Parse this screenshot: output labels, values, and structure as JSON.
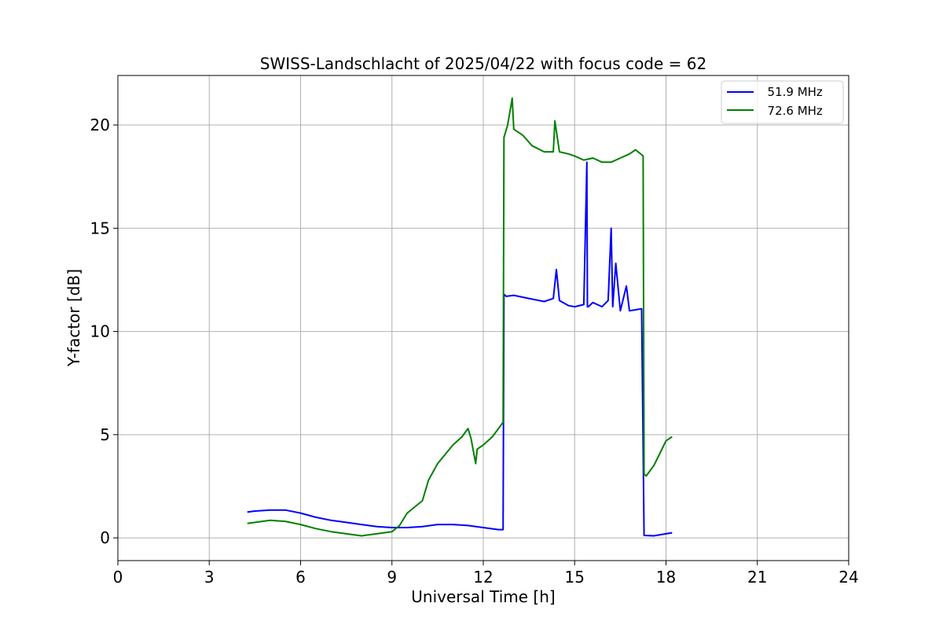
{
  "chart_data": {
    "type": "line",
    "title": "SWISS-Landschlacht of 2025/04/22 with focus code = 62",
    "xlabel": "Universal Time [h]",
    "ylabel": "Y-factor [dB]",
    "xlim": [
      0,
      24
    ],
    "ylim": [
      -1.1,
      22.4
    ],
    "xticks": [
      "0",
      "3",
      "6",
      "9",
      "12",
      "15",
      "18",
      "21",
      "24"
    ],
    "yticks": [
      "0",
      "5",
      "10",
      "15",
      "20"
    ],
    "grid": true,
    "legend_position": "top-right",
    "series": [
      {
        "name": "  51.9 MHz",
        "color": "#0000ff",
        "x": [
          4.25,
          4.5,
          5.0,
          5.5,
          6.0,
          6.5,
          7.0,
          7.5,
          8.0,
          8.5,
          9.0,
          9.5,
          10.0,
          10.5,
          11.0,
          11.5,
          12.0,
          12.5,
          12.65,
          12.68,
          12.75,
          13.0,
          13.5,
          14.0,
          14.3,
          14.4,
          14.5,
          14.8,
          15.0,
          15.3,
          15.4,
          15.42,
          15.45,
          15.6,
          15.9,
          16.1,
          16.2,
          16.25,
          16.35,
          16.5,
          16.7,
          16.8,
          17.0,
          17.2,
          17.28,
          17.3,
          17.6,
          18.0,
          18.2
        ],
        "y": [
          1.25,
          1.3,
          1.35,
          1.35,
          1.2,
          1.0,
          0.85,
          0.75,
          0.65,
          0.55,
          0.5,
          0.5,
          0.55,
          0.65,
          0.65,
          0.6,
          0.5,
          0.4,
          0.4,
          11.8,
          11.7,
          11.75,
          11.6,
          11.45,
          11.6,
          13.0,
          11.5,
          11.25,
          11.2,
          11.3,
          18.2,
          11.2,
          11.2,
          11.4,
          11.2,
          11.5,
          15.0,
          11.2,
          13.3,
          11.0,
          12.2,
          11.0,
          11.05,
          11.1,
          0.12,
          0.12,
          0.1,
          0.2,
          0.25
        ]
      },
      {
        "name": "  72.6 MHz",
        "color": "#008000",
        "x": [
          4.25,
          4.5,
          5.0,
          5.5,
          6.0,
          6.5,
          7.0,
          7.5,
          8.0,
          8.5,
          9.0,
          9.25,
          9.5,
          10.0,
          10.2,
          10.5,
          11.0,
          11.3,
          11.5,
          11.6,
          11.75,
          11.8,
          12.0,
          12.3,
          12.65,
          12.68,
          12.8,
          12.95,
          13.0,
          13.3,
          13.6,
          14.0,
          14.3,
          14.35,
          14.5,
          14.8,
          15.0,
          15.3,
          15.6,
          15.9,
          16.2,
          16.5,
          16.8,
          17.0,
          17.25,
          17.28,
          17.35,
          17.6,
          17.8,
          18.0,
          18.2
        ],
        "y": [
          0.7,
          0.75,
          0.85,
          0.8,
          0.65,
          0.45,
          0.3,
          0.2,
          0.1,
          0.2,
          0.3,
          0.6,
          1.2,
          1.8,
          2.8,
          3.6,
          4.5,
          4.9,
          5.3,
          4.8,
          3.6,
          4.3,
          4.5,
          4.9,
          5.6,
          19.4,
          20.0,
          21.3,
          19.8,
          19.5,
          19.0,
          18.7,
          18.7,
          20.2,
          18.7,
          18.6,
          18.5,
          18.3,
          18.4,
          18.2,
          18.2,
          18.4,
          18.6,
          18.8,
          18.5,
          3.1,
          3.0,
          3.5,
          4.1,
          4.7,
          4.9
        ]
      }
    ]
  }
}
